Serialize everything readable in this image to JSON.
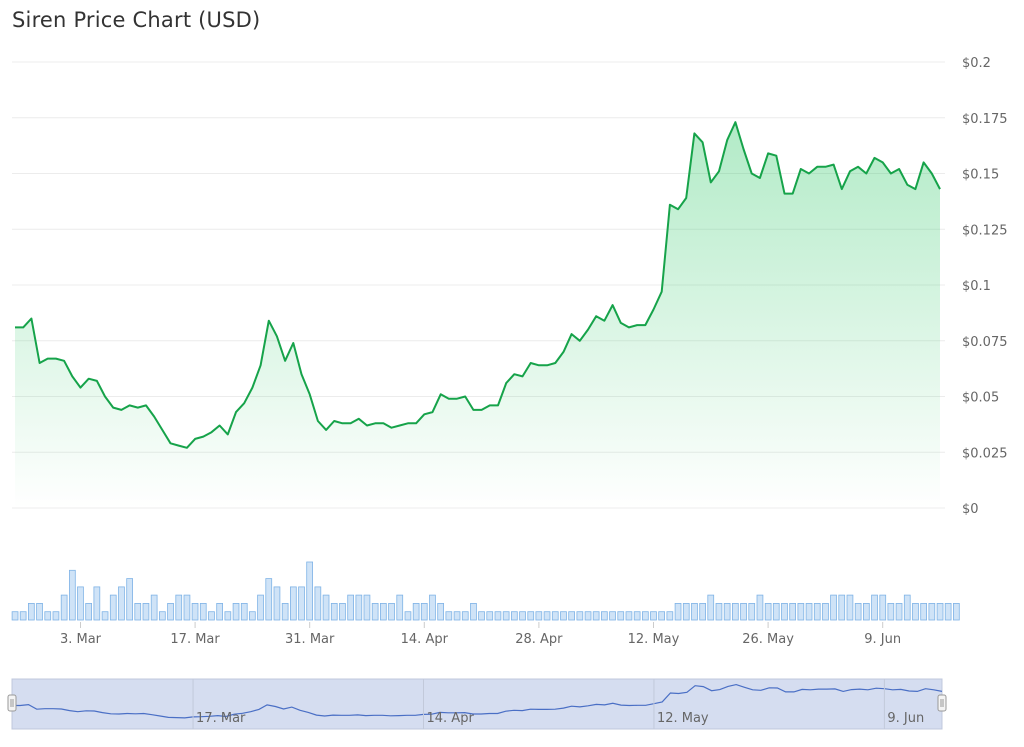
{
  "chart_data": {
    "type": "line",
    "title": "Siren Price Chart (USD)",
    "currency": "USD",
    "ylim": [
      0,
      0.2
    ],
    "y_ticks": [
      0,
      0.025,
      0.05,
      0.075,
      0.1,
      0.125,
      0.15,
      0.175,
      0.2
    ],
    "y_tick_labels": [
      "$0",
      "$0.025",
      "$0.05",
      "$0.075",
      "$0.1",
      "$0.125",
      "$0.15",
      "$0.175",
      "$0.2"
    ],
    "x_tick_labels": [
      "3. Mar",
      "17. Mar",
      "31. Mar",
      "14. Apr",
      "28. Apr",
      "12. May",
      "26. May",
      "9. Jun"
    ],
    "navigator_labels": [
      "17. Mar",
      "14. Apr",
      "12. May",
      "9. Jun"
    ],
    "series": [
      {
        "name": "Price",
        "color": "#16a34a",
        "values": [
          0.081,
          0.081,
          0.085,
          0.065,
          0.067,
          0.067,
          0.066,
          0.059,
          0.054,
          0.058,
          0.057,
          0.05,
          0.045,
          0.044,
          0.046,
          0.045,
          0.046,
          0.041,
          0.035,
          0.029,
          0.028,
          0.027,
          0.031,
          0.032,
          0.034,
          0.037,
          0.033,
          0.043,
          0.047,
          0.054,
          0.064,
          0.084,
          0.077,
          0.066,
          0.074,
          0.06,
          0.051,
          0.039,
          0.035,
          0.039,
          0.038,
          0.038,
          0.04,
          0.037,
          0.038,
          0.038,
          0.036,
          0.037,
          0.038,
          0.038,
          0.042,
          0.043,
          0.051,
          0.049,
          0.049,
          0.05,
          0.044,
          0.044,
          0.046,
          0.046,
          0.056,
          0.06,
          0.059,
          0.065,
          0.064,
          0.064,
          0.065,
          0.07,
          0.078,
          0.075,
          0.08,
          0.086,
          0.084,
          0.091,
          0.083,
          0.081,
          0.082,
          0.082,
          0.089,
          0.097,
          0.136,
          0.134,
          0.139,
          0.168,
          0.164,
          0.146,
          0.151,
          0.165,
          0.173,
          0.161,
          0.15,
          0.148,
          0.159,
          0.158,
          0.141,
          0.141,
          0.152,
          0.15,
          0.153,
          0.153,
          0.154,
          0.143,
          0.151,
          0.153,
          0.15,
          0.157,
          0.155,
          0.15,
          0.152,
          0.145,
          0.143,
          0.155,
          0.15,
          0.143
        ]
      },
      {
        "name": "Volume",
        "color": "#9ec9f0",
        "values": [
          1,
          1,
          2,
          2,
          1,
          1,
          3,
          6,
          4,
          2,
          4,
          1,
          3,
          4,
          5,
          2,
          2,
          3,
          1,
          2,
          3,
          3,
          2,
          2,
          1,
          2,
          1,
          2,
          2,
          1,
          3,
          5,
          4,
          2,
          4,
          4,
          7,
          4,
          3,
          2,
          2,
          3,
          3,
          3,
          2,
          2,
          2,
          3,
          1,
          2,
          2,
          3,
          2,
          1,
          1,
          1,
          2,
          1,
          1,
          1,
          1,
          1,
          1,
          1,
          1,
          1,
          1,
          1,
          1,
          1,
          1,
          1,
          1,
          1,
          1,
          1,
          1,
          1,
          1,
          1,
          1,
          2,
          2,
          2,
          2,
          3,
          2,
          2,
          2,
          2,
          2,
          3,
          2,
          2,
          2,
          2,
          2,
          2,
          2,
          2,
          3,
          3,
          3,
          2,
          2,
          3,
          3,
          2,
          2,
          3,
          2,
          2,
          2,
          2,
          2,
          2
        ]
      }
    ],
    "legend": "none",
    "grid": "horizontal"
  }
}
